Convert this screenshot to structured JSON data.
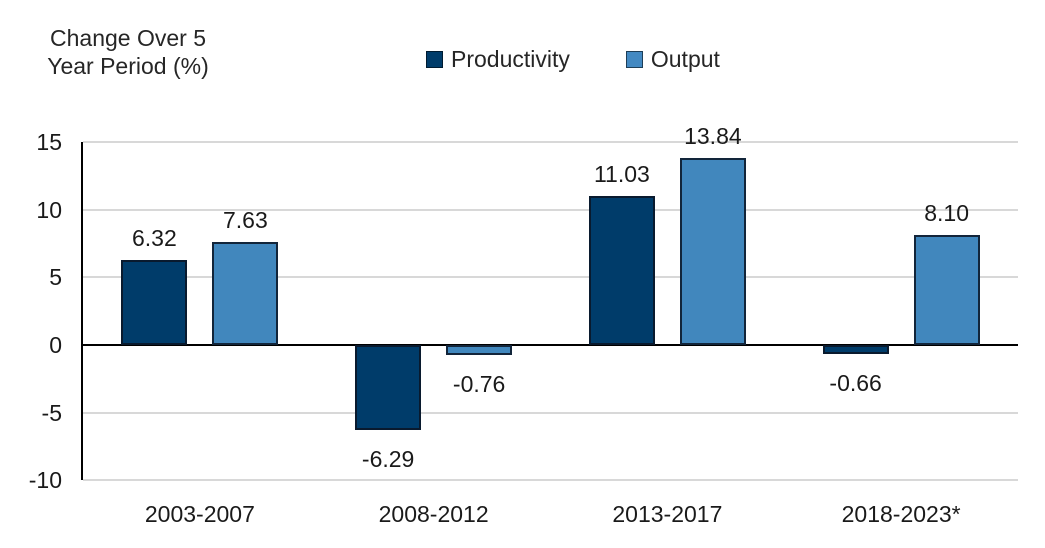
{
  "y_axis_title": {
    "line1": "Change Over 5",
    "line2": "Year Period (%)"
  },
  "legend": {
    "items": [
      {
        "label": "Productivity",
        "color": "#003c6a"
      },
      {
        "label": "Output",
        "color": "#4389c2"
      }
    ]
  },
  "colors": {
    "productivity_bar": "#003c6a",
    "output_bar": "#4187bd",
    "gridline": "#d8d8d8",
    "axis": "#000000",
    "text": "#262626"
  },
  "chart_data": {
    "type": "bar",
    "title": "",
    "ylabel": "Change Over 5 Year Period (%)",
    "xlabel": "",
    "categories": [
      "2003-2007",
      "2008-2012",
      "2013-2017",
      "2018-2023*"
    ],
    "series": [
      {
        "name": "Productivity",
        "color": "#003c6a",
        "values": [
          6.32,
          -6.29,
          11.03,
          -0.66
        ]
      },
      {
        "name": "Output",
        "color": "#4187bd",
        "values": [
          7.63,
          -0.76,
          13.84,
          8.1
        ]
      }
    ],
    "value_label_decimals": 2,
    "yticks": [
      15,
      10,
      5,
      0,
      -5,
      -10
    ],
    "ylim": [
      -10,
      15
    ],
    "grid": true,
    "legend_position": "top-center"
  }
}
